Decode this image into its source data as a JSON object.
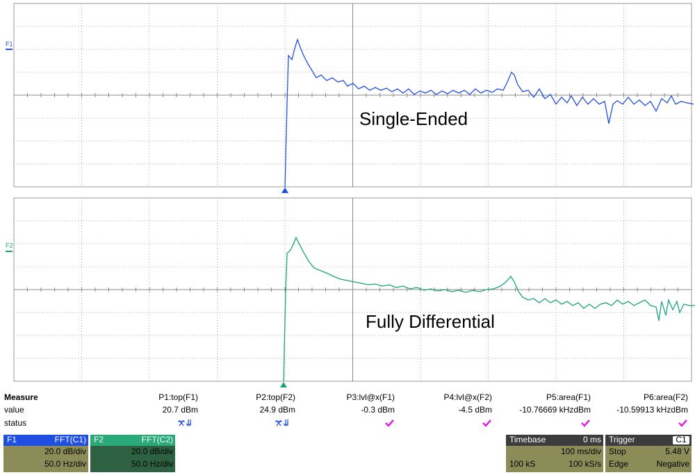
{
  "traces": [
    {
      "label": "F1",
      "annotation": "Single-Ended"
    },
    {
      "label": "F2",
      "annotation": "Fully Differential"
    }
  ],
  "measure": {
    "title": "Measure",
    "row_labels": [
      "value",
      "status"
    ],
    "columns": [
      {
        "name": "P1:top(F1)",
        "value": "20.7 dBm"
      },
      {
        "name": "P2:top(F2)",
        "value": "24.9 dBm"
      },
      {
        "name": "P3:lvl@x(F1)",
        "value": "-0.3 dBm"
      },
      {
        "name": "P4:lvl@x(F2)",
        "value": "-4.5 dBm"
      },
      {
        "name": "P5:area(F1)",
        "value": "-10.76669 kHzdBm"
      },
      {
        "name": "P6:area(F2)",
        "value": "-10.59913 kHzdBm"
      }
    ]
  },
  "channels": [
    {
      "label": "F1",
      "source": "FFT(C1)",
      "vdiv": "20.0 dB/div",
      "hdiv": "50.0 Hz/div"
    },
    {
      "label": "F2",
      "source": "FFT(C2)",
      "vdiv": "20.0 dB/div",
      "hdiv": "50.0 Hz/div"
    }
  ],
  "timebase": {
    "title": "Timebase",
    "delay": "0 ms",
    "per_div": "100 ms/div",
    "samples": "100 kS",
    "rate": "100 kS/s"
  },
  "trigger": {
    "title": "Trigger",
    "source": "C1",
    "mode": "Stop",
    "level": "5.48 V",
    "type": "Edge",
    "slope": "Negative"
  }
}
